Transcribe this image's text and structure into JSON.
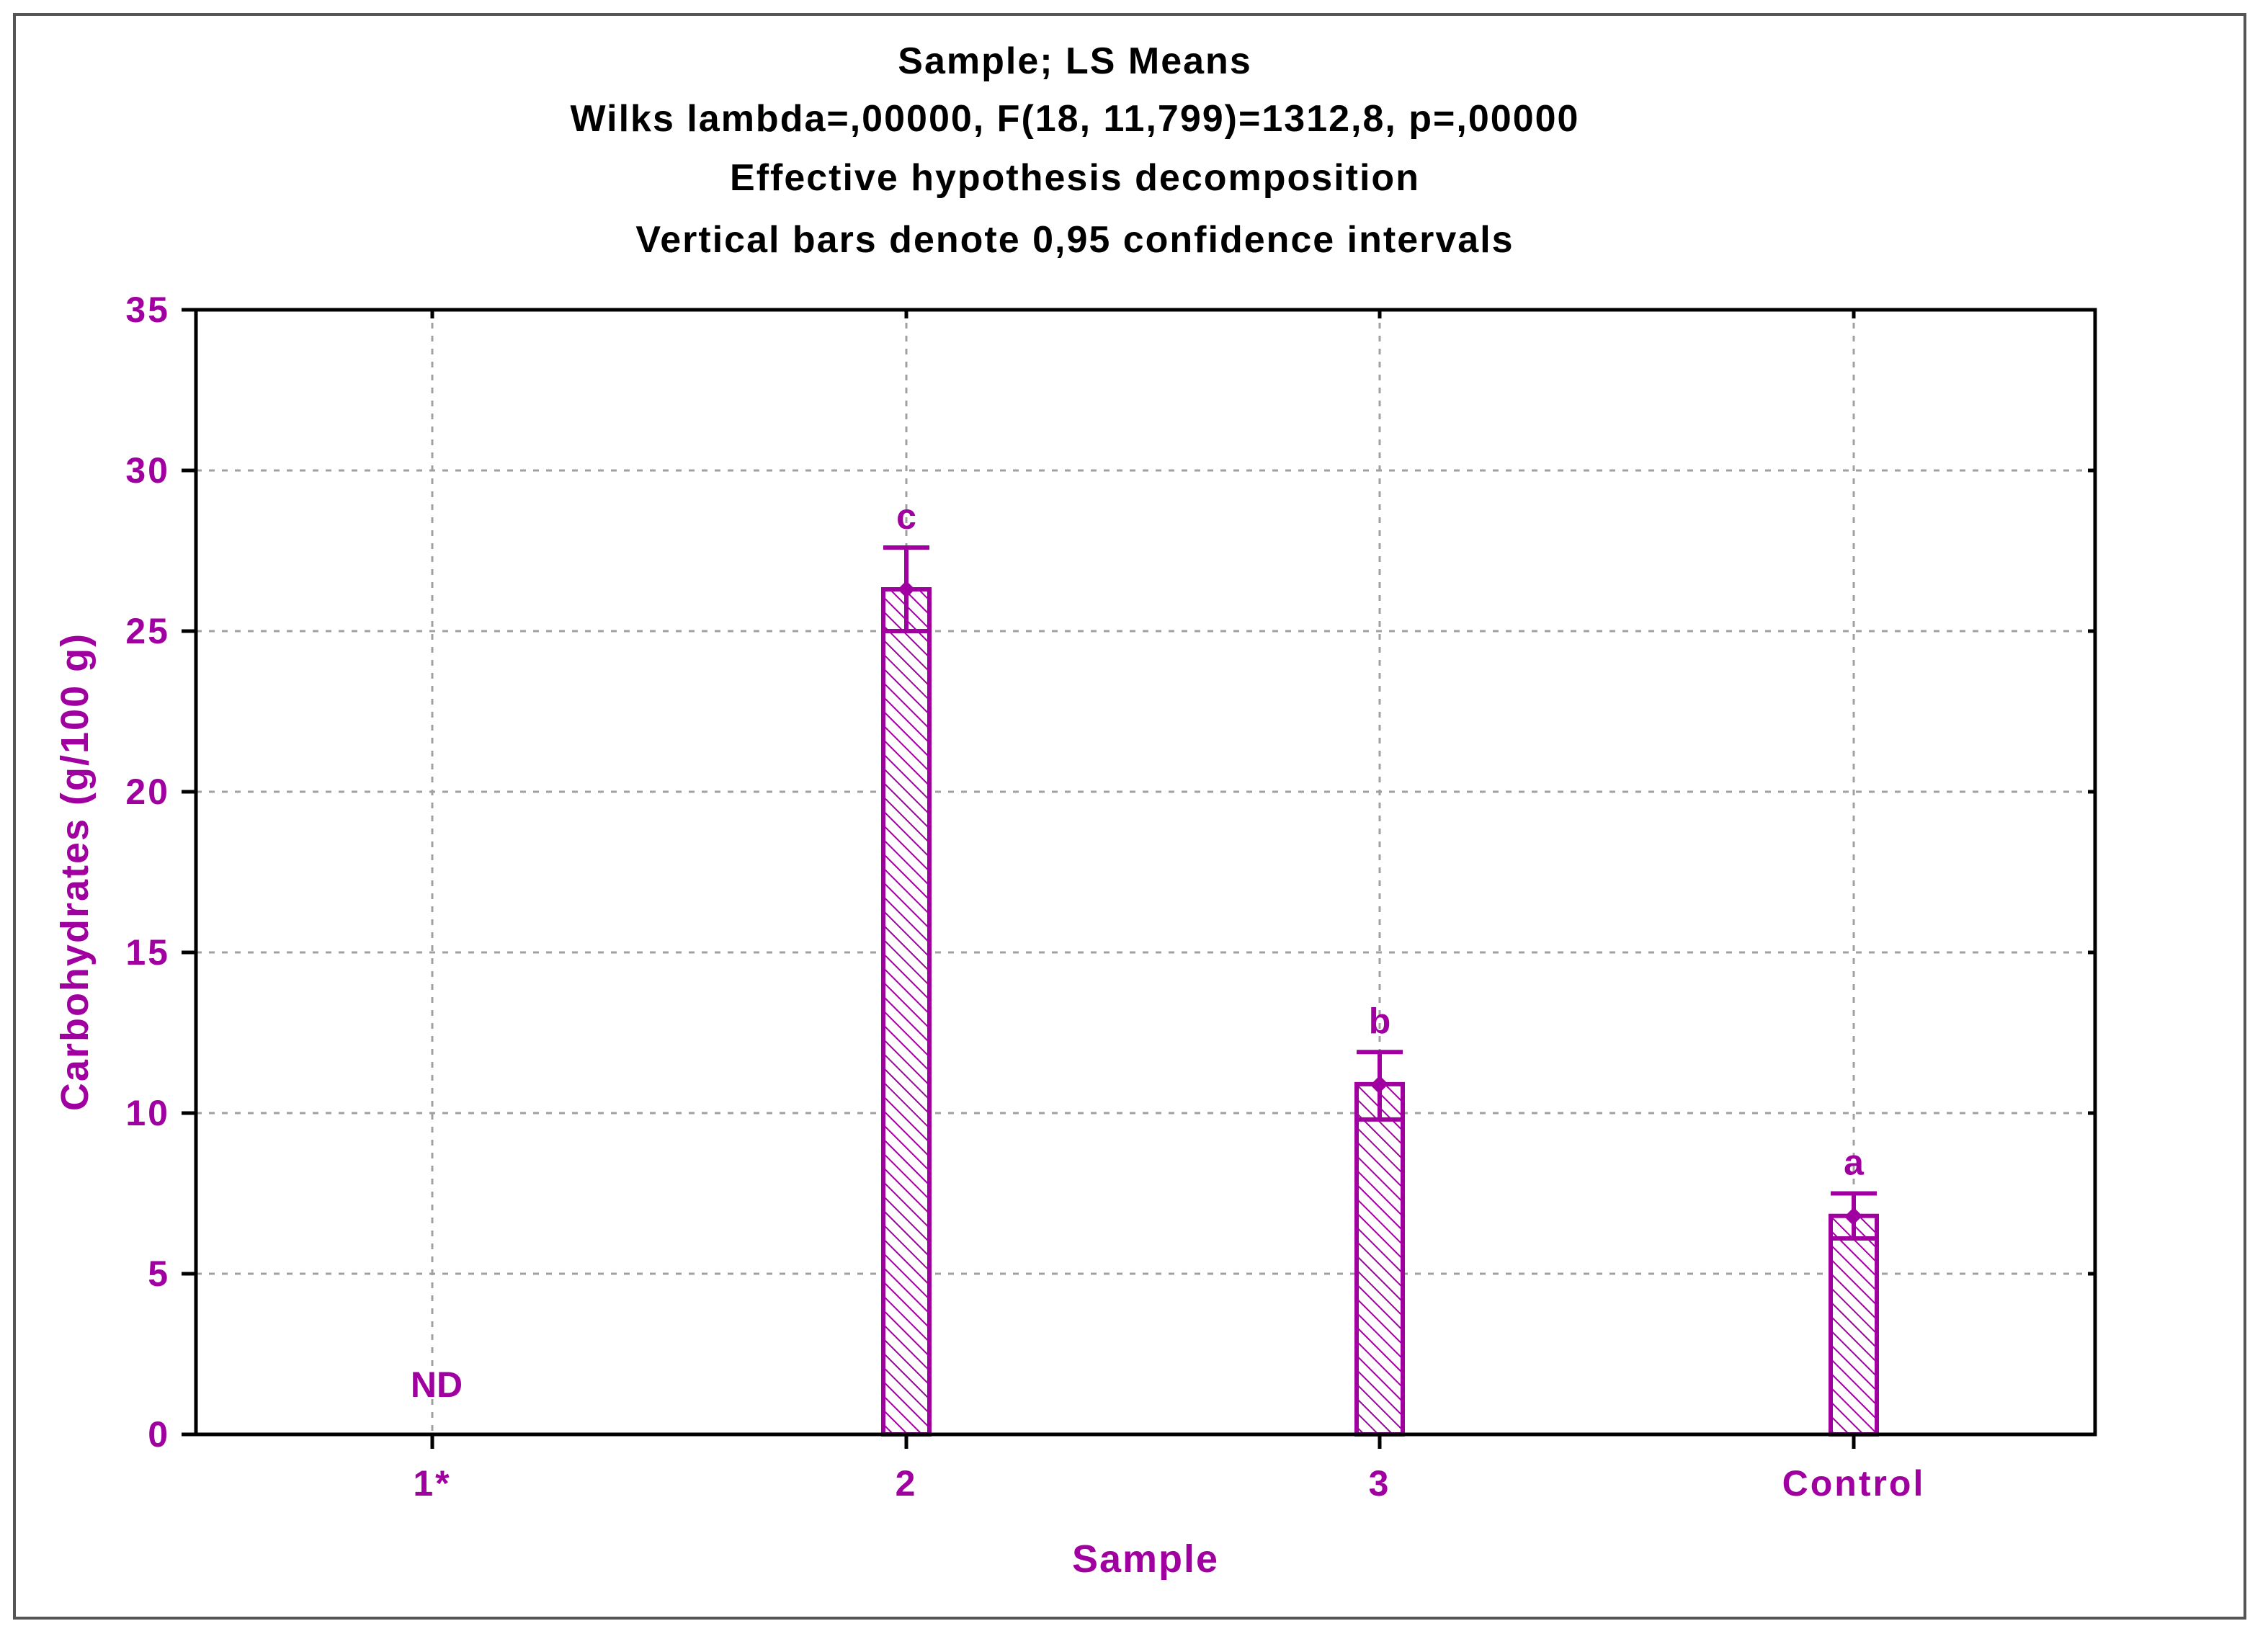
{
  "colors": {
    "series": "#A000A0",
    "axis": "#000000",
    "grid": "#A0A0A0",
    "title": "#000000"
  },
  "chart_data": {
    "type": "bar",
    "title_lines": [
      "Sample; LS Means",
      "Wilks lambda=,00000, F(18, 11,799)=1312,8, p=,00000",
      "Effective hypothesis decomposition",
      "Vertical bars denote 0,95 confidence intervals"
    ],
    "xlabel": "Sample",
    "ylabel": "Carbohydrates (g/100 g)",
    "categories": [
      "1*",
      "2",
      "3",
      "Control"
    ],
    "values": [
      null,
      26.3,
      10.9,
      6.8
    ],
    "ci_low": [
      null,
      25.0,
      9.8,
      6.1
    ],
    "ci_high": [
      null,
      27.6,
      11.9,
      7.5
    ],
    "annotations": [
      "ND",
      "c",
      "b",
      "a"
    ],
    "ylim": [
      0,
      35
    ],
    "yticks": [
      0,
      5,
      10,
      15,
      20,
      25,
      30,
      35
    ],
    "grid": true,
    "bar_fill": "diagonal-hatch"
  }
}
